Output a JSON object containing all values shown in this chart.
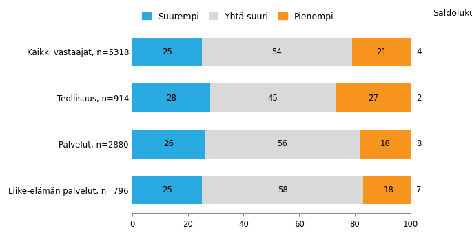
{
  "categories": [
    "Kaikki vastaajat, n=5318",
    "Teollisuus, n=914",
    "Palvelut, n=2880",
    "Liike-elämän palvelut, n=796"
  ],
  "suurempi": [
    25,
    28,
    26,
    25
  ],
  "yhta_suuri": [
    54,
    45,
    56,
    58
  ],
  "pienempi": [
    21,
    27,
    18,
    18
  ],
  "saldoluku": [
    4,
    2,
    8,
    7
  ],
  "color_suurempi": "#29abe2",
  "color_yhta_suuri": "#d9d9d9",
  "color_pienempi": "#f7941d",
  "legend_labels": [
    "Suurempi",
    "Yhtä suuri",
    "Pienempi",
    "Saldoluku"
  ],
  "xlim": [
    0,
    100
  ],
  "xticks": [
    0,
    20,
    40,
    60,
    80,
    100
  ],
  "bar_height": 0.62,
  "figsize": [
    6.85,
    3.51
  ],
  "dpi": 100,
  "fontsize_labels": 8.5,
  "fontsize_bar_text": 8.5,
  "fontsize_saldo": 8.5,
  "fontsize_legend": 9,
  "background_color": "#ffffff"
}
